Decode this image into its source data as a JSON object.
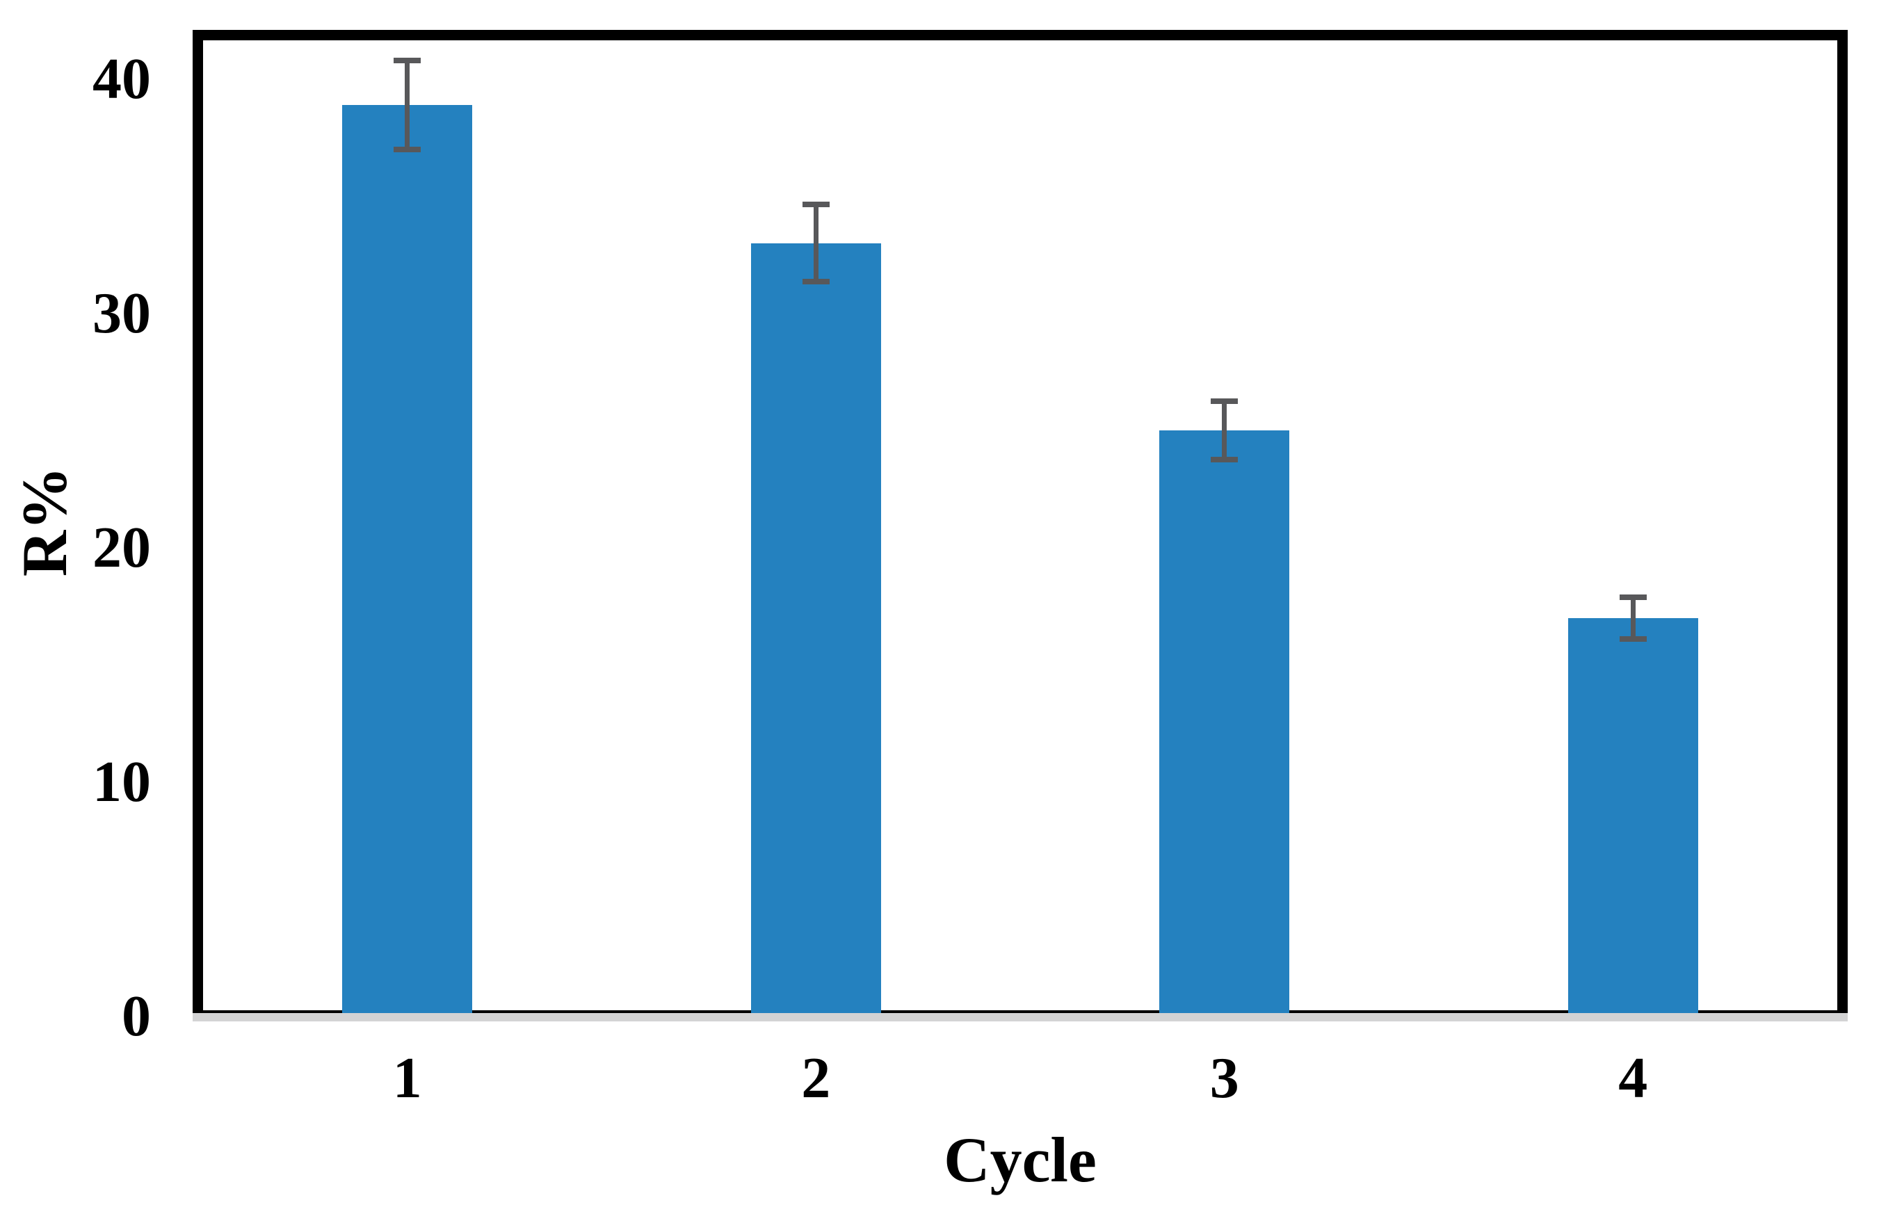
{
  "chart_data": {
    "type": "bar",
    "title": "",
    "categories": [
      "1",
      "2",
      "3",
      "4"
    ],
    "values": [
      38.9,
      33,
      25,
      17
    ],
    "errors": [
      1.9,
      1.65,
      1.25,
      0.9
    ],
    "xlabel": "Cycle",
    "ylabel": "R%",
    "yticks": [
      0,
      10,
      20,
      30,
      40
    ],
    "ylim": [
      0,
      41.4
    ],
    "grid": false,
    "legend": false,
    "bar_color": "#2481BF",
    "error_bar_color": "#58585A",
    "axis_baseline_color": "#D3D3D4",
    "frame_color": "#000000",
    "text_color": "#000000"
  }
}
